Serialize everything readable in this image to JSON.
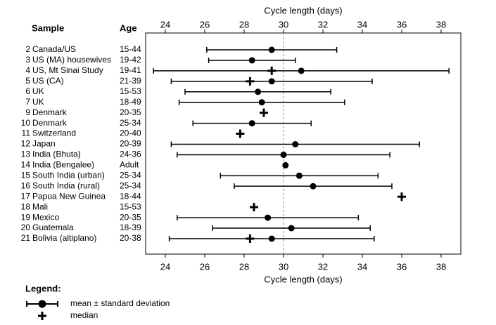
{
  "chart_data": {
    "type": "forest",
    "xlabel": "Cycle length (days)",
    "column_headers": {
      "sample": "Sample",
      "age": "Age"
    },
    "xlim": [
      23,
      39
    ],
    "xticks": [
      24,
      26,
      28,
      30,
      32,
      34,
      36,
      38
    ],
    "reference_line": 30,
    "rows": [
      {
        "id": 2,
        "name": "Canada/US",
        "age": "15-44",
        "mean": 29.4,
        "sd": 3.3,
        "median": null
      },
      {
        "id": 3,
        "name": "US (MA) housewives",
        "age": "19-42",
        "mean": 28.4,
        "sd": 2.2,
        "median": null
      },
      {
        "id": 4,
        "name": "US, Mt Sinai Study",
        "age": "19-41",
        "mean": 30.9,
        "sd": 7.5,
        "median": 29.4
      },
      {
        "id": 5,
        "name": "US (CA)",
        "age": "21-39",
        "mean": 29.4,
        "sd": 5.1,
        "median": 28.3
      },
      {
        "id": 6,
        "name": "UK",
        "age": "15-53",
        "mean": 28.7,
        "sd": 3.7,
        "median": null
      },
      {
        "id": 7,
        "name": "UK",
        "age": "18-49",
        "mean": 28.9,
        "sd": 4.2,
        "median": null
      },
      {
        "id": 9,
        "name": "Denmark",
        "age": "20-35",
        "mean": null,
        "sd": null,
        "median": 29.0
      },
      {
        "id": 10,
        "name": "Denmark",
        "age": "25-34",
        "mean": 28.4,
        "sd": 3.0,
        "median": null
      },
      {
        "id": 11,
        "name": "Switzerland",
        "age": "20-40",
        "mean": null,
        "sd": null,
        "median": 27.8
      },
      {
        "id": 12,
        "name": "Japan",
        "age": "20-39",
        "mean": 30.6,
        "sd": 6.3,
        "median": null
      },
      {
        "id": 13,
        "name": "India (Bhuta)",
        "age": "24-36",
        "mean": 30.0,
        "sd": 5.4,
        "median": null
      },
      {
        "id": 14,
        "name": "India (Bengalee)",
        "age": "Adult",
        "mean": 30.1,
        "sd": null,
        "median": null
      },
      {
        "id": 15,
        "name": "South India (urban)",
        "age": "25-34",
        "mean": 30.8,
        "sd": 4.0,
        "median": null
      },
      {
        "id": 16,
        "name": "South India (rural)",
        "age": "25-34",
        "mean": 31.5,
        "sd": 4.0,
        "median": null
      },
      {
        "id": 17,
        "name": "Papua New Guinea",
        "age": "18-44",
        "mean": null,
        "sd": null,
        "median": 36.0
      },
      {
        "id": 18,
        "name": "Mali",
        "age": "15-53",
        "mean": null,
        "sd": null,
        "median": 28.5
      },
      {
        "id": 19,
        "name": "Mexico",
        "age": "20-35",
        "mean": 29.2,
        "sd": 4.6,
        "median": null
      },
      {
        "id": 20,
        "name": "Guatemala",
        "age": "18-39",
        "mean": 30.4,
        "sd": 4.0,
        "median": null
      },
      {
        "id": 21,
        "name": "Bolivia (altiplano)",
        "age": "20-38",
        "mean": 29.4,
        "sd": 5.2,
        "median": 28.3
      }
    ],
    "legend": {
      "title": "Legend:",
      "mean_sd": "mean ± standard deviation",
      "median": "median"
    }
  }
}
